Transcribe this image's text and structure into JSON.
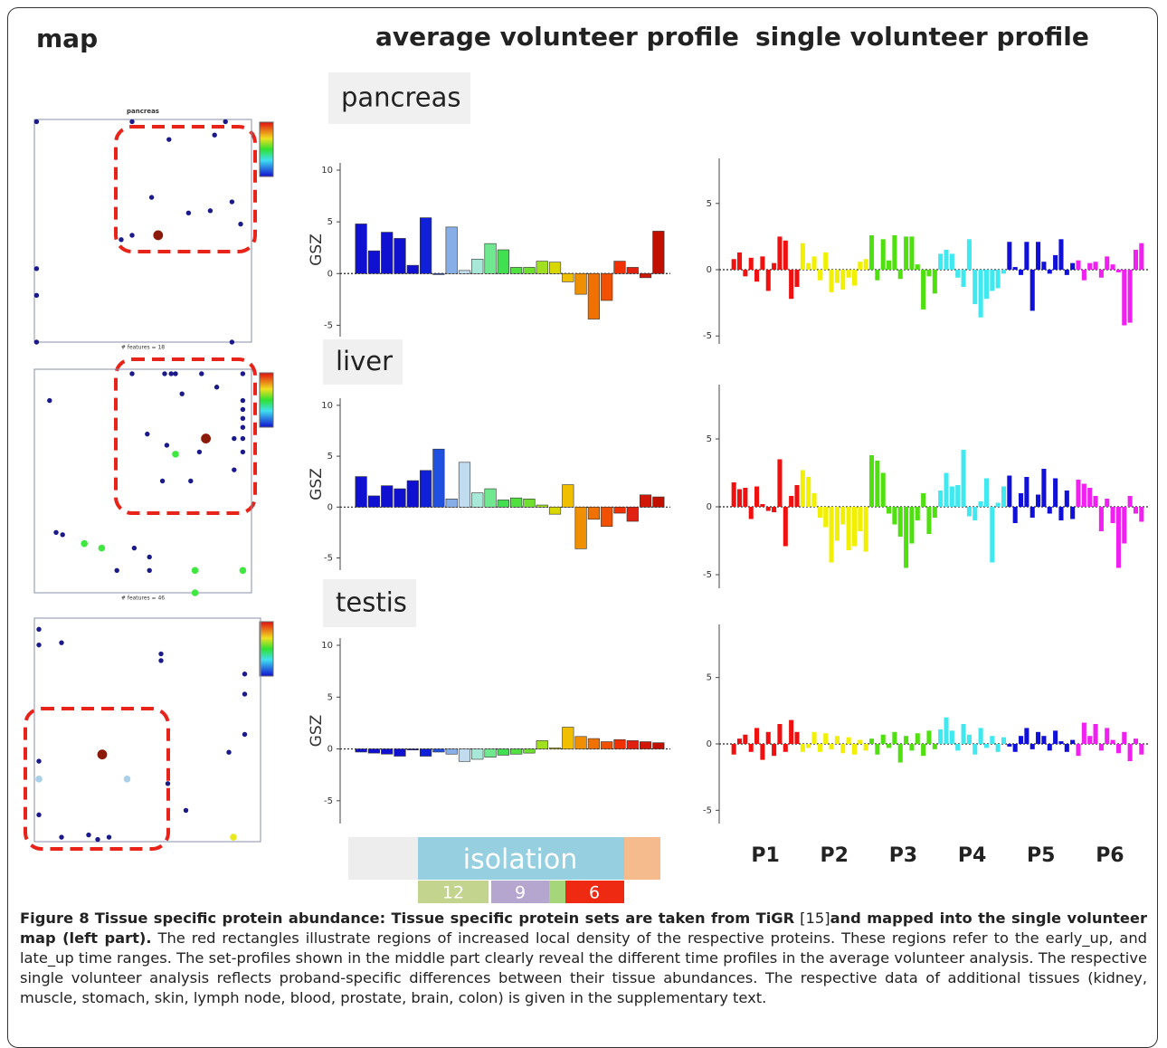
{
  "headers": [
    "map",
    "average volunteer profile",
    "single volunteer profile"
  ],
  "timeline": {
    "label": "isolation",
    "counts": [
      12,
      9,
      6
    ]
  },
  "caption": {
    "label": "Figure 8",
    "bold": "Tissue specific protein abundance: Tissue specific protein sets are taken from TiGR",
    "ref": "[15]",
    "bold2": "and mapped into the single volunteer map (left part).",
    "text": "The red rectangles illustrate regions of increased local density of the respective proteins. These regions refer to the early_up, and late_up time ranges. The set-profiles shown in the middle part clearly reveal the different time profiles in the average volunteer analysis. The respective single volunteer analysis reflects proband-specific differences between their tissue abundances. The respective data of additional tissues (kidney, muscle, stomach, skin, lymph node, blood, prostate, brain, colon) is given in the supplementary text."
  },
  "chart_data": [
    {
      "type": "scatter",
      "title": "pancreas",
      "xlabel": "# features = 18",
      "xlim": [
        0,
        100
      ],
      "ylim": [
        0,
        100
      ],
      "x": [
        1,
        45,
        88,
        62,
        83,
        54,
        91,
        71,
        81,
        40,
        45,
        57,
        95,
        1,
        1,
        1,
        91
      ],
      "y": [
        99,
        99,
        99,
        91,
        93,
        65,
        63,
        58,
        59,
        46,
        48,
        48,
        53,
        33,
        21,
        0,
        0
      ],
      "colors": [
        "#1a1a8a",
        "#1a1a8a",
        "#1a1a8a",
        "#1a1a8a",
        "#1a1a8a",
        "#1a1a8a",
        "#1a1a8a",
        "#1a1a8a",
        "#1a1a8a",
        "#1a1a8a",
        "#1a1a8a",
        "#8b1a0a",
        "#1a1a8a",
        "#1a1a8a",
        "#1a1a8a",
        "#1a1a8a",
        "#1a1a8a"
      ],
      "sizes": [
        1,
        1,
        1,
        1,
        1,
        1,
        1,
        1,
        1,
        1,
        1,
        2,
        1,
        1,
        1,
        1,
        1
      ]
    },
    {
      "type": "scatter",
      "xlabel": "# features = 46",
      "xlim": [
        0,
        100
      ],
      "ylim": [
        0,
        100
      ],
      "x": [
        7,
        45,
        60,
        63,
        65,
        77,
        96,
        84,
        96,
        96,
        96,
        96,
        96,
        96,
        68,
        52,
        61,
        79,
        92,
        76,
        65,
        59,
        72,
        92,
        10,
        13,
        23,
        31,
        46,
        53,
        38,
        53,
        74,
        96,
        74
      ],
      "y": [
        86,
        98,
        98,
        98,
        98,
        98,
        98,
        92,
        86,
        82,
        78,
        74,
        69,
        63,
        89,
        71,
        66,
        69,
        69,
        63,
        62,
        50,
        50,
        55,
        27,
        26,
        22,
        20,
        20,
        16,
        10,
        10,
        10,
        10,
        0
      ],
      "colors": [
        "#1a1a8a",
        "#1a1a8a",
        "#1a1a8a",
        "#1a1a8a",
        "#1a1a8a",
        "#1a1a8a",
        "#1a1a8a",
        "#1a1a8a",
        "#1a1a8a",
        "#1a1a8a",
        "#1a1a8a",
        "#1a1a8a",
        "#1a1a8a",
        "#1a1a8a",
        "#1a1a8a",
        "#1a1a8a",
        "#1a1a8a",
        "#8b1a0a",
        "#1a1a8a",
        "#1a1a8a",
        "#3ee83e",
        "#1a1a8a",
        "#1a1a8a",
        "#1a1a8a",
        "#1a1a8a",
        "#1a1a8a",
        "#3ee83e",
        "#3ee83e",
        "#1a1a8a",
        "#1a1a8a",
        "#1a1a8a",
        "#1a1a8a",
        "#3ee83e",
        "#3ee83e",
        "#3ee83e"
      ],
      "sizes": [
        1,
        1,
        1,
        1,
        1,
        1,
        1,
        1,
        1,
        1,
        1,
        1,
        1,
        1,
        1,
        1,
        1,
        2,
        1,
        1,
        1.4,
        1,
        1,
        1,
        1,
        1,
        1.4,
        1.4,
        1,
        1,
        1,
        1,
        1.4,
        1.4,
        1.4
      ]
    },
    {
      "type": "scatter",
      "xlim": [
        0,
        100
      ],
      "ylim": [
        0,
        100
      ],
      "x": [
        2,
        2,
        12,
        56,
        56,
        93,
        93,
        93,
        86,
        2,
        30,
        2,
        41,
        59,
        67,
        2,
        12,
        24,
        28,
        33,
        88
      ],
      "y": [
        95,
        88,
        89,
        84,
        81,
        75,
        66,
        48,
        40,
        36,
        39,
        28,
        28,
        26,
        14,
        12,
        2,
        3,
        1,
        2,
        2
      ],
      "colors": [
        "#1a1a8a",
        "#1a1a8a",
        "#1a1a8a",
        "#1a1a8a",
        "#1a1a8a",
        "#1a1a8a",
        "#1a1a8a",
        "#1a1a8a",
        "#1a1a8a",
        "#1a1a8a",
        "#8b1a0a",
        "#a8d0e8",
        "#a8d0e8",
        "#1a1a8a",
        "#1a1a8a",
        "#1a1a8a",
        "#1a1a8a",
        "#1a1a8a",
        "#1a1a8a",
        "#1a1a8a",
        "#e8e820"
      ],
      "sizes": [
        1,
        1,
        1,
        1,
        1,
        1,
        1,
        1,
        1,
        1,
        2,
        1.4,
        1.4,
        1,
        1,
        1,
        1,
        1,
        1,
        1,
        1.4
      ]
    },
    {
      "type": "bar",
      "title": "pancreas",
      "ylabel": "GSZ",
      "ylim": [
        -6.1,
        10.7
      ],
      "yticks": [
        -5,
        0,
        5,
        10
      ],
      "values": [
        4.8,
        2.2,
        4.0,
        3.4,
        0.8,
        5.4,
        -0.1,
        4.5,
        0.3,
        1.4,
        2.9,
        2.3,
        0.6,
        0.6,
        1.2,
        1.1,
        -0.8,
        -2.0,
        -4.4,
        -2.6,
        1.2,
        0.6,
        -0.4,
        4.1
      ],
      "colors": [
        "#1010d0",
        "#1010d0",
        "#1010d0",
        "#1010d0",
        "#1010d0",
        "#1020d8",
        "#2050e0",
        "#88aee8",
        "#c0dcee",
        "#a8e8d8",
        "#70e890",
        "#40e050",
        "#50e040",
        "#70e030",
        "#a0e020",
        "#d8d800",
        "#f0c000",
        "#f09000",
        "#f07000",
        "#f05000",
        "#f03000",
        "#e02010",
        "#d01808",
        "#c01000"
      ]
    },
    {
      "type": "bar",
      "title": "liver",
      "ylabel": "GSZ",
      "ylim": [
        -6.2,
        10.7
      ],
      "yticks": [
        -5,
        0,
        5,
        10
      ],
      "values": [
        3.0,
        1.1,
        2.1,
        1.8,
        2.6,
        3.6,
        5.7,
        0.8,
        4.4,
        1.4,
        1.8,
        0.7,
        0.9,
        0.8,
        0.2,
        -0.7,
        2.2,
        -4.1,
        -1.2,
        -1.9,
        -0.6,
        -1.4,
        1.2,
        1.0
      ],
      "colors": [
        "#1010d0",
        "#1010d0",
        "#1010d0",
        "#1010d0",
        "#1010d0",
        "#1020d8",
        "#2050e0",
        "#88aee8",
        "#c0dcee",
        "#a8e8d8",
        "#70e890",
        "#40e050",
        "#50e040",
        "#70e030",
        "#a0e020",
        "#d8d800",
        "#f0c000",
        "#f09000",
        "#f07000",
        "#f05000",
        "#f03000",
        "#e02010",
        "#d01808",
        "#c01000"
      ]
    },
    {
      "type": "bar",
      "title": "testis",
      "ylabel": "GSZ",
      "ylim": [
        -7.2,
        10.7
      ],
      "yticks": [
        -5,
        0,
        5,
        10
      ],
      "values": [
        -0.3,
        -0.4,
        -0.5,
        -0.7,
        -0.1,
        -0.7,
        -0.3,
        -0.5,
        -1.2,
        -1.0,
        -0.8,
        -0.6,
        -0.5,
        -0.4,
        0.8,
        0.1,
        2.1,
        1.2,
        1.0,
        0.7,
        0.9,
        0.8,
        0.7,
        0.6
      ],
      "colors": [
        "#1010d0",
        "#1010d0",
        "#1010d0",
        "#1010d0",
        "#1010d0",
        "#1020d8",
        "#2050e0",
        "#88aee8",
        "#c0dcee",
        "#a8e8d8",
        "#70e890",
        "#40e050",
        "#50e040",
        "#70e030",
        "#a0e020",
        "#d8d800",
        "#f0c000",
        "#f09000",
        "#f07000",
        "#f05000",
        "#f03000",
        "#e02010",
        "#d01808",
        "#c01000"
      ]
    },
    {
      "type": "bar",
      "ylim": [
        -5.6,
        8.4
      ],
      "yticks": [
        -5,
        0,
        5
      ],
      "series": [
        {
          "color": "#f01010",
          "values": [
            0.8,
            1.3,
            -0.5,
            0.9,
            -0.9,
            1.0,
            -1.6,
            0.5,
            2.5,
            2.2,
            -2.2,
            -1.3
          ]
        },
        {
          "color": "#f0f000",
          "values": [
            2.0,
            0.5,
            1.0,
            -0.8,
            1.3,
            -1.7,
            -1.0,
            -1.5,
            -0.6,
            -1.2,
            0.6,
            0.8
          ]
        },
        {
          "color": "#50e010",
          "values": [
            2.6,
            -0.8,
            2.3,
            0.7,
            2.6,
            -0.7,
            2.5,
            2.5,
            0.4,
            -3.0,
            -0.5,
            -1.8
          ]
        },
        {
          "color": "#40e8f0",
          "values": [
            1.2,
            1.5,
            1.2,
            -0.6,
            -1.3,
            2.3,
            -2.6,
            -3.6,
            -2.2,
            -1.6,
            -1.4,
            -0.3
          ]
        },
        {
          "color": "#1010d8",
          "values": [
            2.1,
            0.2,
            -0.4,
            2.1,
            -3.1,
            2.1,
            0.6,
            -0.3,
            1.1,
            2.3,
            -0.4,
            0.5
          ]
        },
        {
          "color": "#f020f0",
          "values": [
            0.7,
            -0.8,
            0.5,
            0.6,
            -0.6,
            1.0,
            0.4,
            -0.2,
            -4.2,
            -4.0,
            1.5,
            2.0
          ]
        }
      ]
    },
    {
      "type": "bar",
      "ylim": [
        -6,
        9
      ],
      "yticks": [
        -5,
        0,
        5
      ],
      "series": [
        {
          "color": "#f01010",
          "values": [
            1.8,
            1.3,
            1.4,
            -0.9,
            1.5,
            0.2,
            -0.3,
            -0.4,
            3.5,
            -2.9,
            0.8,
            1.6
          ]
        },
        {
          "color": "#f0f000",
          "values": [
            2.7,
            2.2,
            1.0,
            -0.8,
            -1.5,
            -4.1,
            -2.5,
            -1.3,
            -3.2,
            -2.9,
            -1.8,
            -3.3
          ]
        },
        {
          "color": "#50e010",
          "values": [
            3.8,
            3.4,
            2.5,
            -0.5,
            -1.3,
            -2.2,
            -4.5,
            -2.7,
            -1.0,
            1.0,
            -2.0,
            -0.8
          ]
        },
        {
          "color": "#40e8f0",
          "values": [
            1.2,
            2.5,
            1.5,
            1.6,
            4.2,
            -0.7,
            -1.0,
            0.4,
            2.1,
            -4.1,
            0.3,
            1.5
          ]
        },
        {
          "color": "#1010d8",
          "values": [
            2.3,
            -1.2,
            1.0,
            2.2,
            -0.8,
            0.9,
            2.8,
            -0.5,
            2.1,
            -1.0,
            1.2,
            -0.9
          ]
        },
        {
          "color": "#f020f0",
          "values": [
            2.0,
            1.7,
            1.4,
            0.8,
            -1.8,
            0.6,
            -1.2,
            -4.5,
            -2.7,
            0.8,
            -0.5,
            -1.1
          ]
        }
      ]
    },
    {
      "type": "bar",
      "ylim": [
        -6,
        9
      ],
      "yticks": [
        -5,
        0,
        5
      ],
      "series": [
        {
          "name": "P1",
          "color": "#f01010",
          "values": [
            -0.8,
            0.4,
            0.7,
            -0.6,
            1.2,
            -1.2,
            0.9,
            -0.9,
            1.5,
            -0.6,
            1.8,
            0.9
          ]
        },
        {
          "name": "P2",
          "color": "#f0f000",
          "values": [
            -0.6,
            -0.3,
            0.9,
            -0.6,
            0.8,
            -0.4,
            0.6,
            -0.7,
            0.5,
            -0.8,
            0.3,
            -0.5
          ]
        },
        {
          "name": "P3",
          "color": "#50e010",
          "values": [
            0.4,
            -0.8,
            0.7,
            -0.3,
            0.9,
            -1.4,
            0.6,
            -0.5,
            0.8,
            -0.9,
            1.0,
            -0.4
          ]
        },
        {
          "name": "P4",
          "color": "#40e8f0",
          "values": [
            1.1,
            2.0,
            1.0,
            -0.5,
            1.5,
            0.7,
            -0.8,
            1.2,
            -0.3,
            0.6,
            -0.6,
            0.5
          ]
        },
        {
          "name": "P5",
          "color": "#1010d8",
          "values": [
            -0.2,
            -0.6,
            0.6,
            1.2,
            -0.4,
            0.9,
            0.6,
            -0.5,
            1.0,
            0.2,
            -0.6,
            0.3
          ]
        },
        {
          "name": "P6",
          "color": "#f020f0",
          "values": [
            -0.9,
            1.6,
            0.6,
            1.5,
            -0.5,
            1.2,
            0.3,
            -0.7,
            0.9,
            -1.3,
            0.4,
            -0.8
          ]
        }
      ]
    }
  ]
}
